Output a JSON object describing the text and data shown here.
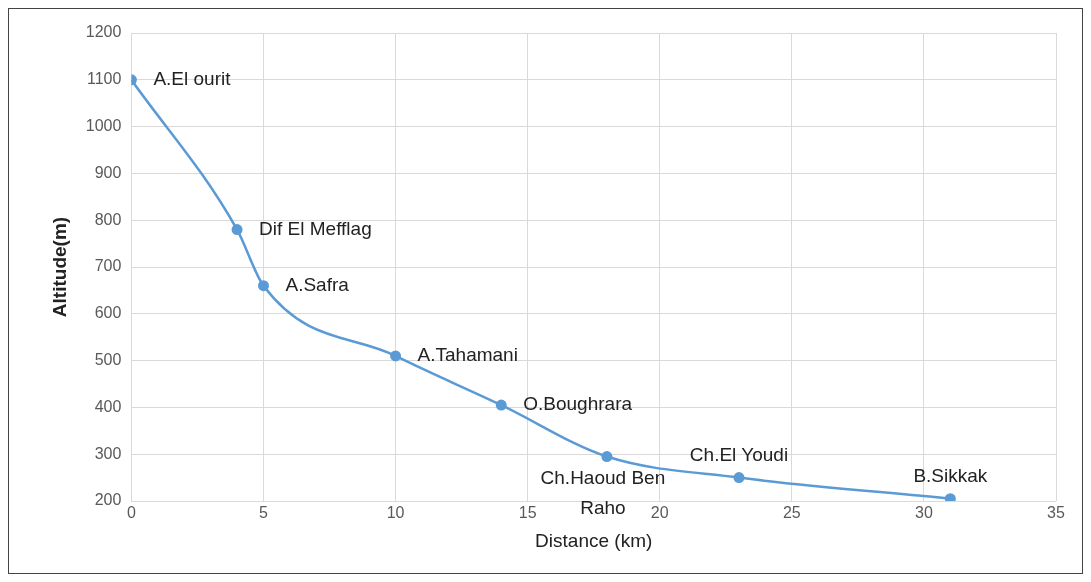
{
  "chart_data": {
    "type": "line",
    "xlabel": "Distance (km)",
    "ylabel": "Altitude(m)",
    "x": [
      0,
      4,
      5,
      10,
      14,
      18,
      23,
      31
    ],
    "series": [
      {
        "color": "#5b9bd5",
        "values": [
          1100,
          780,
          660,
          510,
          405,
          295,
          250,
          205
        ]
      }
    ],
    "xlim": [
      0,
      35
    ],
    "xticks": [
      0,
      5,
      10,
      15,
      20,
      25,
      30,
      35
    ],
    "ylim": [
      200,
      1200
    ],
    "yticks": [
      200,
      300,
      400,
      500,
      600,
      700,
      800,
      900,
      1000,
      1100,
      1200
    ],
    "grid": true,
    "legend": false,
    "marker": "circle",
    "line_style": "solid",
    "annotations": [
      {
        "text": "A.El ourit",
        "x": 0,
        "y": 1100
      },
      {
        "text": "Dif El Mefflag",
        "x": 4,
        "y": 780
      },
      {
        "text": "A.Safra",
        "x": 5,
        "y": 660
      },
      {
        "text": "A.Tahamani",
        "x": 10,
        "y": 510
      },
      {
        "text": "O.Boughrara",
        "x": 14,
        "y": 405
      },
      {
        "text": "Ch.Haoud Ben Raho",
        "x": 18,
        "y": 295
      },
      {
        "text": "Ch.El Youdi",
        "x": 23,
        "y": 250
      },
      {
        "text": "B.Sikkak",
        "x": 31,
        "y": 205
      }
    ]
  }
}
